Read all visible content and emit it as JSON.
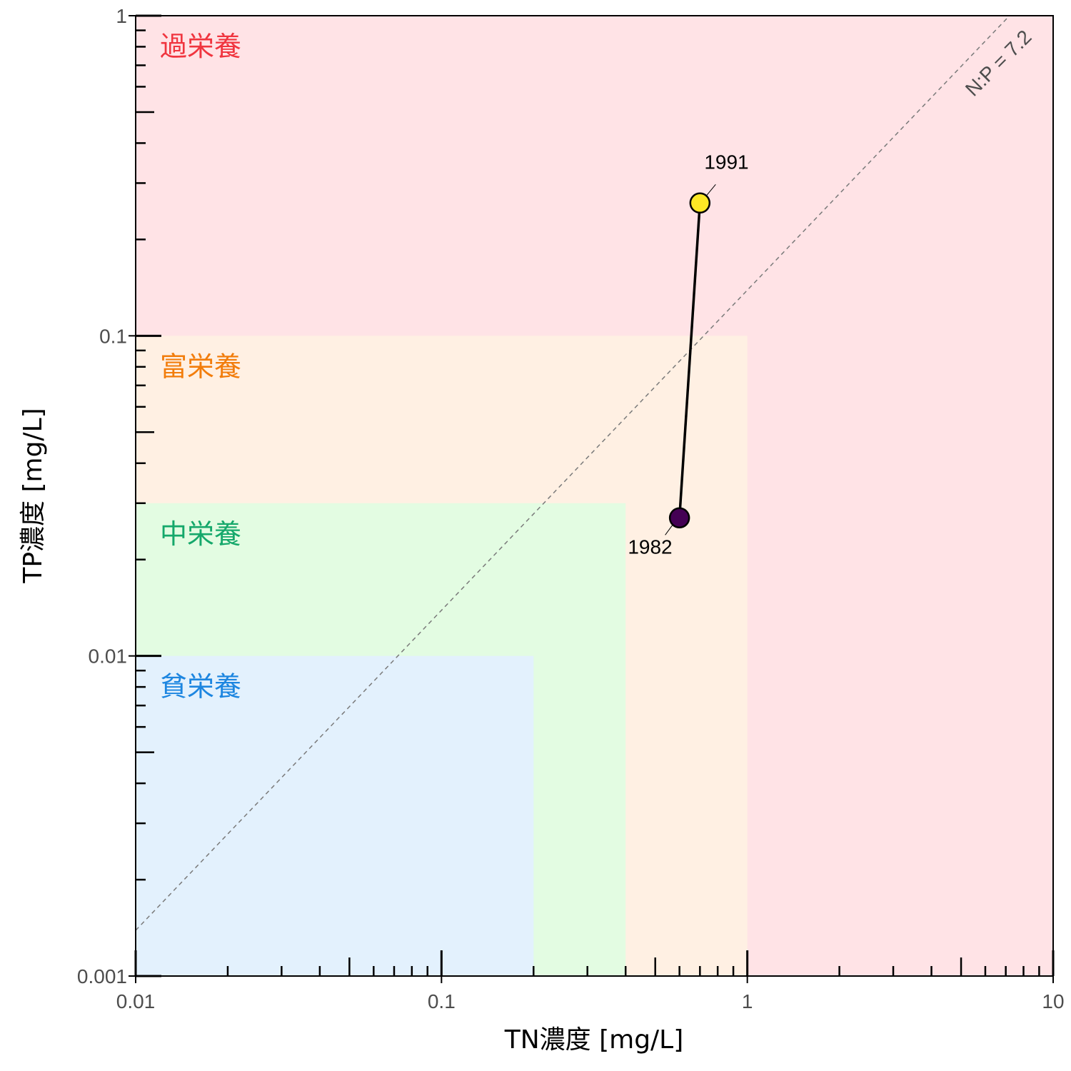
{
  "chart_data": {
    "type": "scatter",
    "x_scale": "log",
    "y_scale": "log",
    "xlim": [
      0.01,
      10
    ],
    "ylim": [
      0.001,
      1
    ],
    "xlabel": "TN濃度 [mg/L]",
    "ylabel": "TP濃度 [mg/L]",
    "x_ticks": [
      {
        "value": 0.01,
        "label": "0.01"
      },
      {
        "value": 0.1,
        "label": "0.1"
      },
      {
        "value": 1,
        "label": "1"
      },
      {
        "value": 10,
        "label": "10"
      }
    ],
    "y_ticks": [
      {
        "value": 0.001,
        "label": "0.001"
      },
      {
        "value": 0.01,
        "label": "0.01"
      },
      {
        "value": 0.1,
        "label": "0.1"
      },
      {
        "value": 1,
        "label": "1"
      }
    ],
    "zones": [
      {
        "label": "過栄養",
        "tn_max": 10,
        "tp_max": 1,
        "fill": "#ffe3e6",
        "text_color": "#f0353f"
      },
      {
        "label": "富栄養",
        "tn_max": 1,
        "tp_max": 0.1,
        "fill": "#fff0e3",
        "text_color": "#f27d0c"
      },
      {
        "label": "中栄養",
        "tn_max": 0.4,
        "tp_max": 0.03,
        "fill": "#e3fce2",
        "text_color": "#15a86b"
      },
      {
        "label": "貧栄養",
        "tn_max": 0.2,
        "tp_max": 0.01,
        "fill": "#e3f1fd",
        "text_color": "#1d86e0"
      }
    ],
    "reference_line": {
      "label": "N:P = 7.2",
      "ratio": 7.2,
      "color": "#7a7a7a"
    },
    "series": [
      {
        "points": [
          {
            "label": "1982",
            "tn": 0.6,
            "tp": 0.027,
            "color": "#440154"
          },
          {
            "label": "1991",
            "tn": 0.7,
            "tp": 0.26,
            "color": "#fde725"
          }
        ]
      }
    ],
    "grid": false
  }
}
